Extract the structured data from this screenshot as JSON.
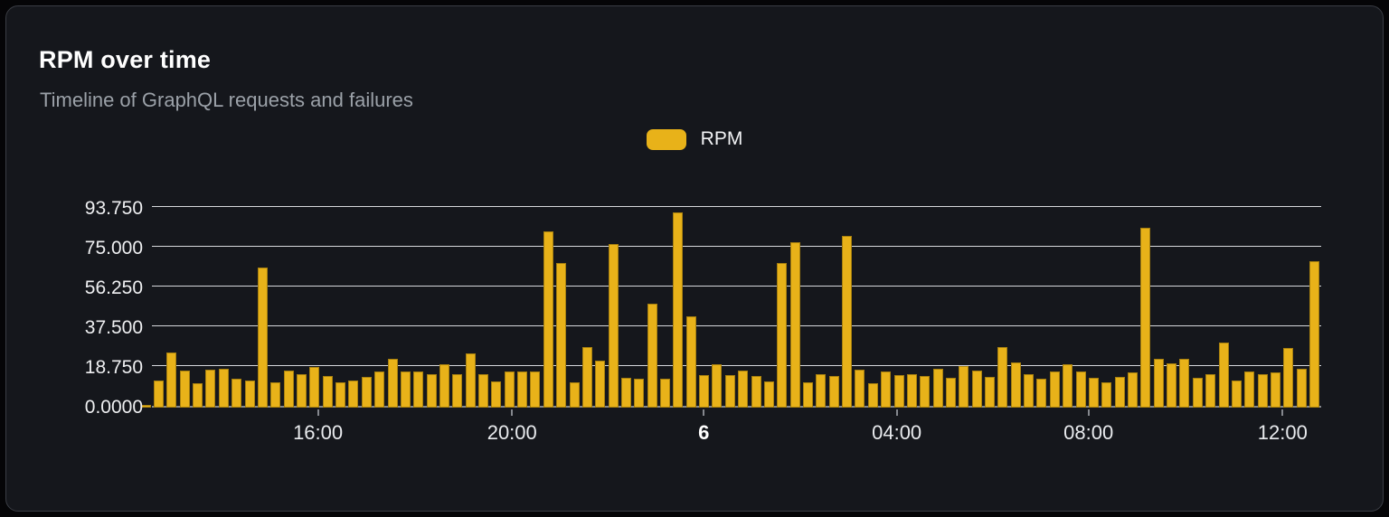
{
  "header": {
    "title": "RPM over time",
    "subtitle": "Timeline of GraphQL requests and failures"
  },
  "legend": {
    "items": [
      {
        "label": "RPM",
        "color": "#E8B219"
      }
    ]
  },
  "chart_data": {
    "type": "bar",
    "title": "RPM over time",
    "subtitle": "Timeline of GraphQL requests and failures",
    "xlabel": "",
    "ylabel": "",
    "ylim": [
      0,
      100
    ],
    "grid": true,
    "legend_position": "top-center",
    "background_color": "#15171C",
    "gridline_color": "#D6D8DC",
    "axis_line_color": "#85888E",
    "y_ticks": [
      {
        "label": "0.0000",
        "value": 0
      },
      {
        "label": "18.750",
        "value": 18.75
      },
      {
        "label": "37.500",
        "value": 37.5
      },
      {
        "label": "56.250",
        "value": 56.25
      },
      {
        "label": "75.000",
        "value": 75
      },
      {
        "label": "93.750",
        "value": 93.75
      }
    ],
    "x_ticks": [
      {
        "label": "16:00",
        "pos_pct": 14.2,
        "bold": false
      },
      {
        "label": "20:00",
        "pos_pct": 30.8,
        "bold": false
      },
      {
        "label": "6",
        "pos_pct": 47.2,
        "bold": true
      },
      {
        "label": "04:00",
        "pos_pct": 63.7,
        "bold": false
      },
      {
        "label": "08:00",
        "pos_pct": 80.1,
        "bold": false
      },
      {
        "label": "12:00",
        "pos_pct": 96.7,
        "bold": false
      }
    ],
    "series": [
      {
        "name": "RPM",
        "color": "#E8B219",
        "values": [
          1.2,
          13,
          26,
          17.5,
          11.5,
          18,
          18.5,
          13.5,
          13,
          66,
          12,
          17.5,
          16,
          19,
          15,
          12,
          13,
          14.5,
          17,
          23,
          17,
          17,
          16,
          20.5,
          16,
          25.5,
          16,
          12.5,
          17,
          17,
          17,
          83,
          68,
          12,
          28.5,
          22,
          77,
          14,
          13.5,
          49,
          13.5,
          92,
          43,
          15.5,
          20.5,
          15.5,
          17.5,
          15,
          12.5,
          68,
          78,
          12,
          16,
          15,
          81,
          18,
          11.5,
          17,
          15.5,
          16,
          15,
          18.5,
          14,
          19.5,
          17.5,
          14.5,
          28.5,
          21.5,
          16,
          13.5,
          17,
          20.5,
          17,
          14,
          12,
          14.5,
          16.5,
          85,
          23,
          21,
          23,
          14,
          16,
          30.5,
          13,
          17,
          16,
          16.5,
          28,
          18.5,
          69
        ]
      }
    ]
  }
}
